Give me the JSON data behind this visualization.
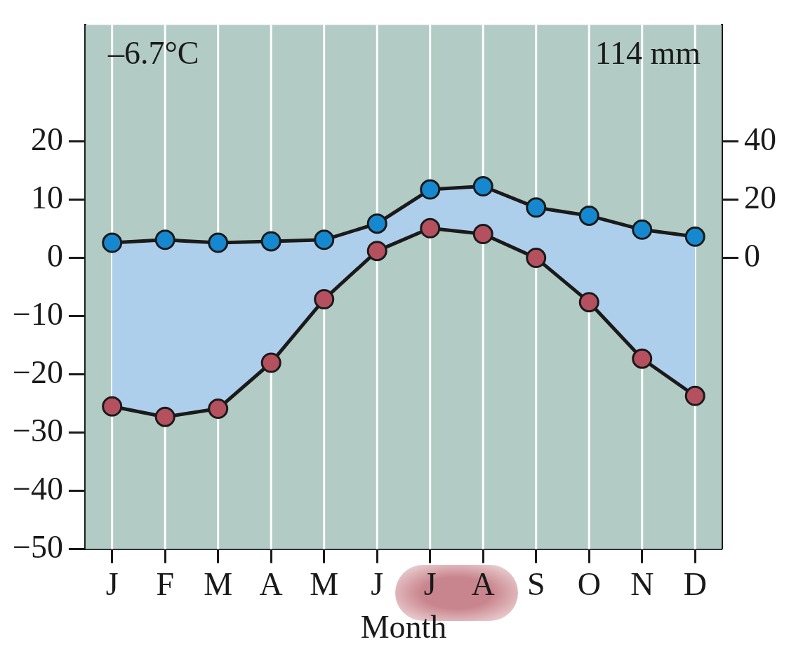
{
  "chart_data": {
    "type": "line",
    "xlabel": "Month",
    "categories": [
      "J",
      "F",
      "M",
      "A",
      "M",
      "J",
      "J",
      "A",
      "S",
      "O",
      "N",
      "D"
    ],
    "series": [
      {
        "color": "#b5505f",
        "values": [
          -25.5,
          -27.3,
          -25.9,
          -18,
          -7.1,
          1.2,
          5.1,
          4.1,
          0,
          -7.6,
          -17.3,
          -23.7
        ],
        "lower": [
          -25.5,
          -27.3,
          -25.9,
          -18,
          -7.1,
          1.2,
          5.1,
          4.1,
          0,
          -7.6,
          -17.3,
          -23.7
        ],
        "upper": [
          2.6,
          3.1,
          2.6,
          2.85,
          3.1,
          5.9,
          11.75,
          12.3,
          8.65,
          7.25,
          4.85,
          3.65
        ]
      },
      {
        "color": "#1688d0",
        "axis": "y2",
        "values": [
          5.2,
          6.2,
          5.2,
          5.7,
          6.2,
          11.8,
          23.5,
          24.6,
          17.3,
          14.5,
          9.7,
          7.3
        ]
      }
    ],
    "ylim": [
      -50,
      40
    ],
    "yticks": [
      -50,
      -40,
      -30,
      -20,
      -10,
      0,
      10,
      20
    ],
    "y2lim": [
      -100,
      80
    ],
    "y2ticks": [
      0,
      20,
      40
    ],
    "annotations": [
      "–6.7°C",
      "114 mm"
    ],
    "grid": "x",
    "legend": false,
    "marker": "circle",
    "line_style": "solid"
  }
}
